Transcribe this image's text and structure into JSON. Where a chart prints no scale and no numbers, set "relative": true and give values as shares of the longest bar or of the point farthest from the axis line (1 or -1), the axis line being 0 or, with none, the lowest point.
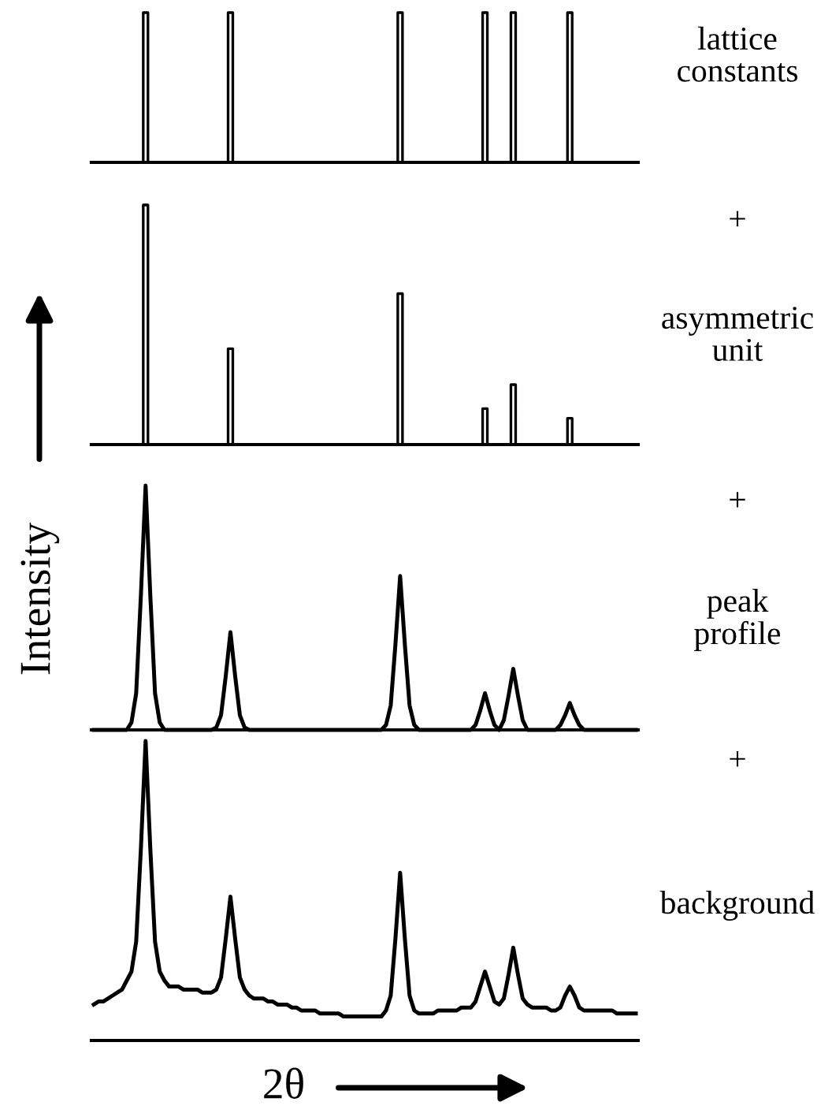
{
  "chart_data": [
    {
      "type": "step",
      "relative": true,
      "color": "#000000",
      "annotations": [
        "lattice constants"
      ],
      "categories": [
        null,
        null,
        null,
        null,
        null,
        null,
        null,
        null,
        null,
        null,
        null,
        null,
        null,
        null,
        null,
        null,
        null,
        null,
        null,
        null,
        null,
        null,
        null,
        null,
        null,
        null,
        null,
        null,
        null,
        null,
        null,
        null,
        null,
        null,
        null,
        null,
        null,
        null,
        null,
        null,
        null,
        null,
        null,
        null,
        null,
        null,
        null,
        null,
        null,
        null,
        null,
        null,
        null,
        null,
        null,
        null,
        null,
        null,
        null,
        null,
        null,
        null,
        null,
        null,
        null,
        null,
        null,
        null,
        null,
        null,
        null,
        null,
        null,
        null,
        null,
        null,
        null,
        null,
        null,
        null,
        null,
        null,
        null,
        null,
        null,
        null,
        null,
        null,
        null,
        null,
        null,
        null,
        null,
        null,
        null,
        null,
        null,
        null,
        null,
        null,
        null,
        null,
        null,
        null,
        null,
        null,
        null,
        null,
        null,
        null,
        null,
        null,
        null,
        null,
        null,
        null
      ],
      "values": [
        0,
        0,
        0,
        0,
        0,
        0,
        0,
        0,
        0,
        0,
        0,
        1,
        0,
        0,
        0,
        0,
        0,
        0,
        0,
        0,
        0,
        0,
        0,
        0,
        0,
        0,
        0,
        0,
        0,
        1,
        0,
        0,
        0,
        0,
        0,
        0,
        0,
        0,
        0,
        0,
        0,
        0,
        0,
        0,
        0,
        0,
        0,
        0,
        0,
        0,
        0,
        0,
        0,
        0,
        0,
        0,
        0,
        0,
        0,
        0,
        0,
        0,
        0,
        0,
        0,
        1,
        0,
        0,
        0,
        0,
        0,
        0,
        0,
        0,
        0,
        0,
        0,
        0,
        0,
        0,
        0,
        0,
        0,
        1,
        0,
        0,
        0,
        0,
        0,
        1,
        0,
        0,
        0,
        0,
        0,
        0,
        0,
        0,
        0,
        0,
        0,
        1,
        0,
        0,
        0,
        0,
        0,
        0,
        0,
        0,
        0,
        0,
        0,
        0,
        0,
        0
      ]
    },
    {
      "type": "step",
      "relative": true,
      "color": "#000000",
      "annotations": [
        "+",
        "asymmetric unit"
      ],
      "categories": [
        null,
        null,
        null,
        null,
        null,
        null,
        null,
        null,
        null,
        null,
        null,
        null,
        null,
        null,
        null,
        null,
        null,
        null,
        null,
        null,
        null,
        null,
        null,
        null,
        null,
        null,
        null,
        null,
        null,
        null,
        null,
        null,
        null,
        null,
        null,
        null,
        null,
        null,
        null,
        null,
        null,
        null,
        null,
        null,
        null,
        null,
        null,
        null,
        null,
        null,
        null,
        null,
        null,
        null,
        null,
        null,
        null,
        null,
        null,
        null,
        null,
        null,
        null,
        null,
        null,
        null,
        null,
        null,
        null,
        null,
        null,
        null,
        null,
        null,
        null,
        null,
        null,
        null,
        null,
        null,
        null,
        null,
        null,
        null,
        null,
        null,
        null,
        null,
        null,
        null,
        null,
        null,
        null,
        null,
        null,
        null,
        null,
        null,
        null,
        null,
        null,
        null,
        null,
        null,
        null,
        null,
        null,
        null,
        null,
        null,
        null,
        null,
        null,
        null,
        null,
        null
      ],
      "values": [
        0,
        0,
        0,
        0,
        0,
        0,
        0,
        0,
        0,
        0,
        0,
        1,
        0,
        0,
        0,
        0,
        0,
        0,
        0,
        0,
        0,
        0,
        0,
        0,
        0,
        0,
        0,
        0,
        0,
        0.4,
        0,
        0,
        0,
        0,
        0,
        0,
        0,
        0,
        0,
        0,
        0,
        0,
        0,
        0,
        0,
        0,
        0,
        0,
        0,
        0,
        0,
        0,
        0,
        0,
        0,
        0,
        0,
        0,
        0,
        0,
        0,
        0,
        0,
        0,
        0,
        0.63,
        0,
        0,
        0,
        0,
        0,
        0,
        0,
        0,
        0,
        0,
        0,
        0,
        0,
        0,
        0,
        0,
        0,
        0.15,
        0,
        0,
        0,
        0,
        0,
        0.25,
        0,
        0,
        0,
        0,
        0,
        0,
        0,
        0,
        0,
        0,
        0,
        0.11,
        0,
        0,
        0,
        0,
        0,
        0,
        0,
        0,
        0,
        0,
        0,
        0,
        0,
        0
      ]
    },
    {
      "type": "line",
      "relative": true,
      "color": "#000000",
      "annotations": [
        "+",
        "peak profile"
      ],
      "ylabel": "Intensity",
      "categories": [
        null,
        null,
        null,
        null,
        null,
        null,
        null,
        null,
        null,
        null,
        null,
        null,
        null,
        null,
        null,
        null,
        null,
        null,
        null,
        null,
        null,
        null,
        null,
        null,
        null,
        null,
        null,
        null,
        null,
        null,
        null,
        null,
        null,
        null,
        null,
        null,
        null,
        null,
        null,
        null,
        null,
        null,
        null,
        null,
        null,
        null,
        null,
        null,
        null,
        null,
        null,
        null,
        null,
        null,
        null,
        null,
        null,
        null,
        null,
        null,
        null,
        null,
        null,
        null,
        null,
        null,
        null,
        null,
        null,
        null,
        null,
        null,
        null,
        null,
        null,
        null,
        null,
        null,
        null,
        null,
        null,
        null,
        null,
        null,
        null,
        null,
        null,
        null,
        null,
        null,
        null,
        null,
        null,
        null,
        null,
        null,
        null,
        null,
        null,
        null,
        null,
        null,
        null,
        null,
        null,
        null,
        null,
        null,
        null,
        null,
        null,
        null,
        null,
        null,
        null,
        null
      ],
      "values": [
        0,
        0,
        0,
        0,
        0,
        0,
        0,
        0,
        0.03,
        0.15,
        0.55,
        1,
        0.55,
        0.15,
        0.03,
        0,
        0,
        0,
        0,
        0,
        0,
        0,
        0,
        0,
        0,
        0,
        0.01,
        0.06,
        0.22,
        0.4,
        0.22,
        0.06,
        0.01,
        0,
        0,
        0,
        0,
        0,
        0,
        0,
        0,
        0,
        0,
        0,
        0,
        0,
        0,
        0,
        0,
        0,
        0,
        0,
        0,
        0,
        0,
        0,
        0,
        0,
        0,
        0,
        0,
        0,
        0.02,
        0.1,
        0.35,
        0.63,
        0.35,
        0.1,
        0.02,
        0,
        0,
        0,
        0,
        0,
        0,
        0,
        0,
        0,
        0,
        0,
        0,
        0.02,
        0.08,
        0.15,
        0.08,
        0.02,
        0,
        0.04,
        0.14,
        0.25,
        0.14,
        0.04,
        0,
        0,
        0,
        0,
        0,
        0,
        0,
        0.02,
        0.06,
        0.11,
        0.06,
        0.02,
        0,
        0,
        0,
        0,
        0,
        0,
        0,
        0,
        0,
        0,
        0,
        0
      ]
    },
    {
      "type": "line",
      "relative": true,
      "color": "#000000",
      "annotations": [
        "+",
        "background"
      ],
      "xlabel": "2θ",
      "categories": [
        null,
        null,
        null,
        null,
        null,
        null,
        null,
        null,
        null,
        null,
        null,
        null,
        null,
        null,
        null,
        null,
        null,
        null,
        null,
        null,
        null,
        null,
        null,
        null,
        null,
        null,
        null,
        null,
        null,
        null,
        null,
        null,
        null,
        null,
        null,
        null,
        null,
        null,
        null,
        null,
        null,
        null,
        null,
        null,
        null,
        null,
        null,
        null,
        null,
        null,
        null,
        null,
        null,
        null,
        null,
        null,
        null,
        null,
        null,
        null,
        null,
        null,
        null,
        null,
        null,
        null,
        null,
        null,
        null,
        null,
        null,
        null,
        null,
        null,
        null,
        null,
        null,
        null,
        null,
        null,
        null,
        null,
        null,
        null,
        null,
        null,
        null,
        null,
        null,
        null,
        null,
        null,
        null,
        null,
        null,
        null,
        null,
        null,
        null,
        null,
        null,
        null,
        null,
        null,
        null,
        null,
        null,
        null,
        null,
        null,
        null,
        null,
        null,
        null,
        null,
        null
      ],
      "values": [
        0.12,
        0.13,
        0.13,
        0.14,
        0.15,
        0.16,
        0.17,
        0.2,
        0.23,
        0.33,
        0.64,
        1,
        0.64,
        0.33,
        0.23,
        0.2,
        0.18,
        0.18,
        0.18,
        0.17,
        0.17,
        0.17,
        0.17,
        0.16,
        0.16,
        0.16,
        0.17,
        0.21,
        0.34,
        0.48,
        0.34,
        0.21,
        0.17,
        0.15,
        0.14,
        0.14,
        0.14,
        0.13,
        0.13,
        0.12,
        0.12,
        0.12,
        0.11,
        0.11,
        0.1,
        0.1,
        0.1,
        0.1,
        0.09,
        0.09,
        0.09,
        0.09,
        0.09,
        0.08,
        0.08,
        0.08,
        0.08,
        0.08,
        0.08,
        0.08,
        0.08,
        0.08,
        0.1,
        0.15,
        0.34,
        0.56,
        0.34,
        0.15,
        0.1,
        0.09,
        0.09,
        0.09,
        0.09,
        0.1,
        0.1,
        0.1,
        0.1,
        0.1,
        0.11,
        0.11,
        0.11,
        0.13,
        0.18,
        0.23,
        0.18,
        0.13,
        0.12,
        0.14,
        0.22,
        0.31,
        0.22,
        0.14,
        0.12,
        0.11,
        0.11,
        0.11,
        0.11,
        0.1,
        0.1,
        0.11,
        0.15,
        0.18,
        0.15,
        0.11,
        0.1,
        0.1,
        0.1,
        0.1,
        0.1,
        0.1,
        0.1,
        0.09,
        0.09,
        0.09,
        0.09,
        0.09
      ]
    }
  ]
}
